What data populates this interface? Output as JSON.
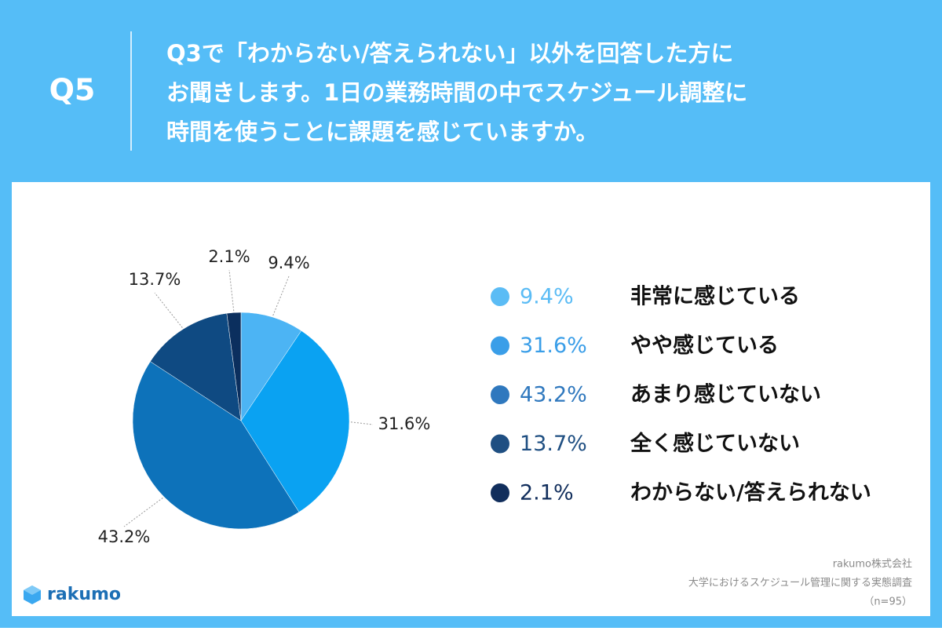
{
  "header": {
    "label": "Q5",
    "question_lines": [
      "Q3で「わからない/答えられない」以外を回答した方に",
      "お聞きします。1日の業務時間の中でスケジュール調整に",
      "時間を使うことに課題を感じていますか。"
    ]
  },
  "chart_data": {
    "type": "pie",
    "categories": [
      "非常に感じている",
      "やや感じている",
      "あまり感じていない",
      "全く感じていない",
      "わからない/答えられない"
    ],
    "values": [
      9.4,
      31.6,
      43.2,
      13.7,
      2.1
    ],
    "value_labels": [
      "9.4%",
      "31.6%",
      "43.2%",
      "13.7%",
      "2.1%"
    ],
    "colors": [
      "#4cb4f4",
      "#0aa2f2",
      "#0d72ba",
      "#0f4a82",
      "#0b2f5e"
    ],
    "legend_colors": [
      "#5bbcf5",
      "#3a9ee8",
      "#2f78be",
      "#1f4f82",
      "#112e5c"
    ]
  },
  "footer": {
    "company": "rakumo株式会社",
    "survey": "大学におけるスケジュール管理に関する実態調査",
    "sample": "（n=95）"
  },
  "logo": "rakumo"
}
